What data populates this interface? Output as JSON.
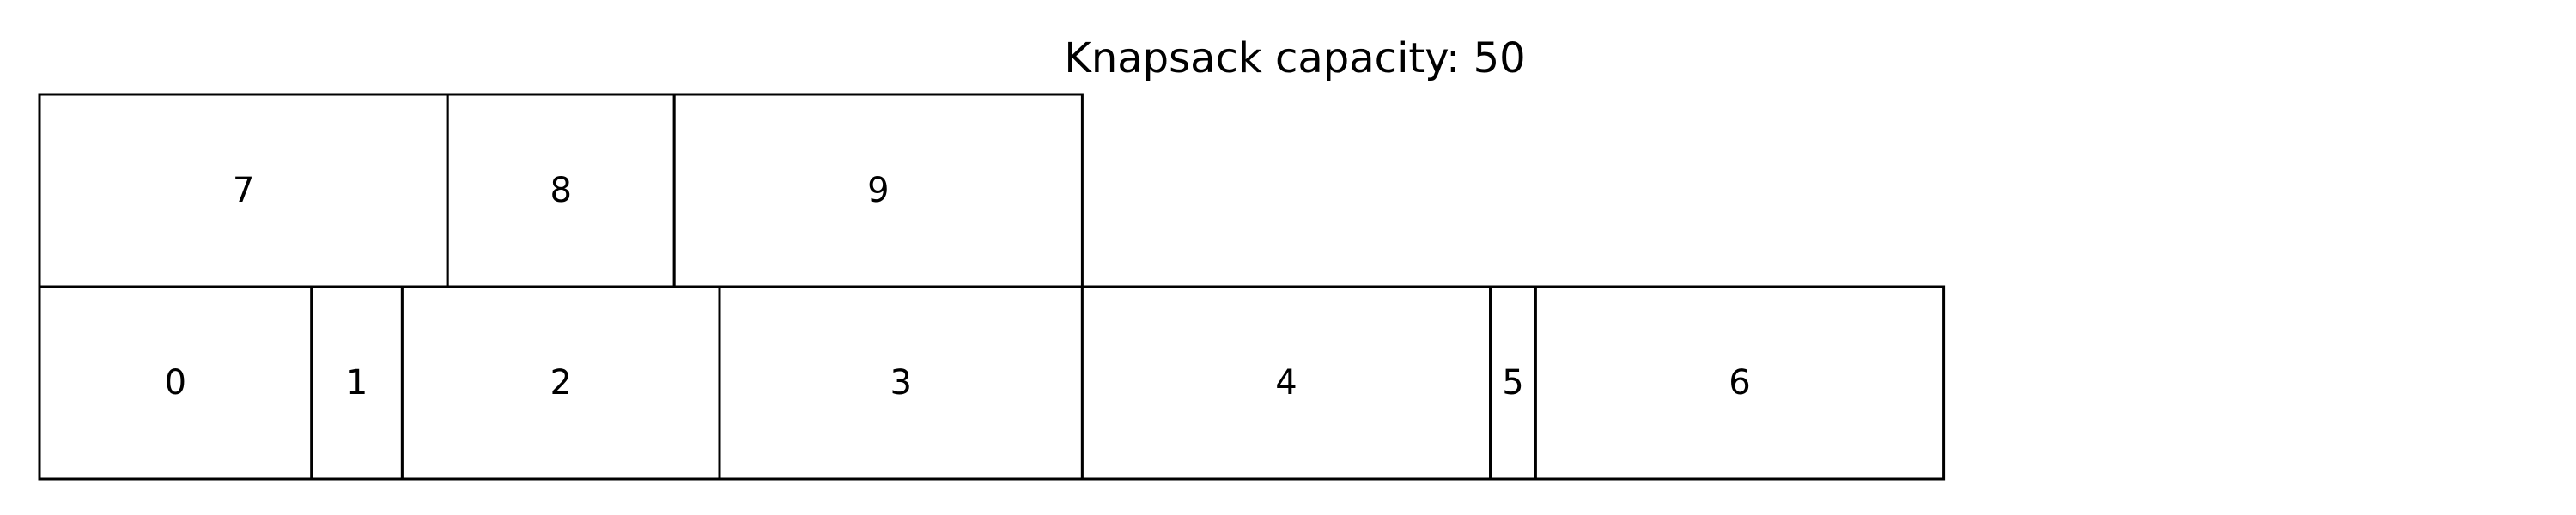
{
  "diagram": {
    "title": "Knapsack capacity: 50"
  },
  "layers": [
    {
      "name": "lower",
      "items": [
        {
          "label": "0",
          "size": 6
        },
        {
          "label": "1",
          "size": 2
        },
        {
          "label": "2",
          "size": 7
        },
        {
          "label": "3",
          "size": 8
        },
        {
          "label": "4",
          "size": 9
        },
        {
          "label": "5",
          "size": 1
        },
        {
          "label": "6",
          "size": 9
        }
      ]
    },
    {
      "name": "upper",
      "items": [
        {
          "label": "7",
          "size": 9
        },
        {
          "label": "8",
          "size": 5
        },
        {
          "label": "9",
          "size": 9
        }
      ]
    }
  ],
  "colors": {
    "stroke": "#000000",
    "fill": "#ffffff",
    "text": "#000000"
  }
}
